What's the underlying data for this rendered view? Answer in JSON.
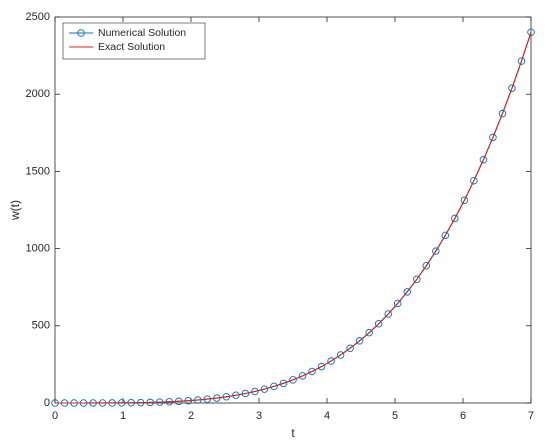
{
  "chart_data": {
    "type": "line",
    "xlabel": "t",
    "ylabel": "w(t)",
    "x": [
      0,
      0.14,
      0.28,
      0.42,
      0.56,
      0.7,
      0.84,
      0.98,
      1.12,
      1.26,
      1.4,
      1.54,
      1.68,
      1.82,
      1.96,
      2.1,
      2.24,
      2.38,
      2.52,
      2.66,
      2.8,
      2.94,
      3.08,
      3.22,
      3.36,
      3.5,
      3.64,
      3.78,
      3.92,
      4.06,
      4.2,
      4.34,
      4.48,
      4.62,
      4.76,
      4.9,
      5.04,
      5.18,
      5.32,
      5.46,
      5.6,
      5.74,
      5.88,
      6.02,
      6.16,
      6.3,
      6.44,
      6.58,
      6.72,
      6.86,
      7
    ],
    "series": [
      {
        "name": "Numerical Solution",
        "color": "#0072bd",
        "marker": "circle",
        "values": [
          0,
          0,
          0,
          0,
          0.1,
          0.2,
          0.5,
          0.9,
          1.6,
          2.5,
          3.8,
          5.6,
          8,
          11,
          14.8,
          19.4,
          25.2,
          32.1,
          40.3,
          50.1,
          61.5,
          74.7,
          90,
          107.5,
          127.5,
          150.1,
          175.6,
          204.2,
          236.1,
          271.7,
          311.2,
          354.8,
          402.8,
          455.6,
          513.4,
          576.5,
          645.3,
          720,
          801.1,
          888.7,
          983.4,
          1085.5,
          1195.4,
          1313.4,
          1439.8,
          1575.3,
          1720.1,
          1874.6,
          2039.3,
          2214.6,
          2401
        ]
      },
      {
        "name": "Exact Solution",
        "color": "#e0201b",
        "marker": "none",
        "values": [
          0,
          0,
          0,
          0,
          0.1,
          0.2,
          0.5,
          0.9,
          1.6,
          2.5,
          3.8,
          5.6,
          8,
          11,
          14.8,
          19.4,
          25.2,
          32.1,
          40.3,
          50.1,
          61.5,
          74.7,
          90,
          107.5,
          127.5,
          150.1,
          175.6,
          204.2,
          236.1,
          271.7,
          311.2,
          354.8,
          402.8,
          455.6,
          513.4,
          576.5,
          645.3,
          720,
          801.1,
          888.7,
          983.4,
          1085.5,
          1195.4,
          1313.4,
          1439.8,
          1575.3,
          1720.1,
          1874.6,
          2039.3,
          2214.6,
          2401
        ]
      }
    ],
    "xlim": [
      0,
      7
    ],
    "xticks": [
      0,
      1,
      2,
      3,
      4,
      5,
      6,
      7
    ],
    "ylim": [
      0,
      2500
    ],
    "yticks": [
      0,
      500,
      1000,
      1500,
      2000,
      2500
    ],
    "grid": false,
    "legend": "upper left"
  }
}
